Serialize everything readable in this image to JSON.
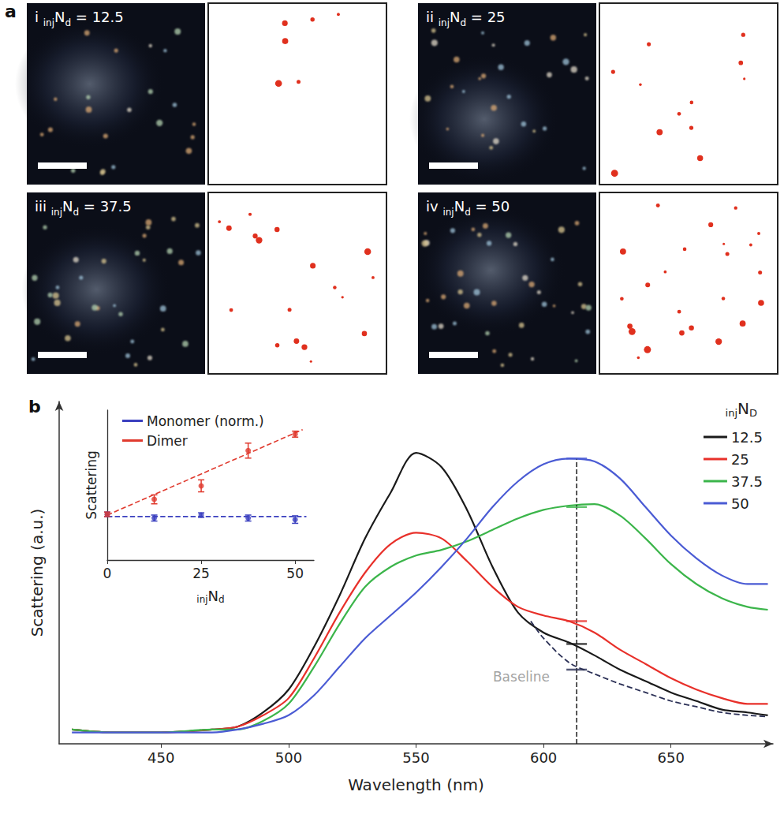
{
  "panel_a": {
    "letter": "a",
    "images": [
      {
        "numeral": "i",
        "pre_sub": "inj",
        "symbol": "N",
        "sub": "d",
        "text": "= 12.5"
      },
      {
        "numeral": "ii",
        "pre_sub": "inj",
        "symbol": "N",
        "sub": "d",
        "text": "= 25"
      },
      {
        "numeral": "iii",
        "pre_sub": "inj",
        "symbol": "N",
        "sub": "d",
        "text": "= 37.5"
      },
      {
        "numeral": "iv",
        "pre_sub": "inj",
        "symbol": "N",
        "sub": "d",
        "text": "= 50"
      }
    ]
  },
  "chart_data": [
    {
      "type": "line",
      "panel_label": "b",
      "x_label": "Wavelength (nm)",
      "y_label": "Scattering (a.u.)",
      "xlim": [
        410,
        690
      ],
      "xticks": [
        450,
        500,
        550,
        600,
        650
      ],
      "ylim": [
        0,
        1.2
      ],
      "tick_labels": "x",
      "grid": false,
      "legend": "upper right",
      "legend_title": {
        "pre_sub": "inj",
        "symbol": "N",
        "sub": "D"
      },
      "x": [
        415,
        430,
        450,
        470,
        480,
        490,
        500,
        510,
        520,
        530,
        540,
        550,
        560,
        570,
        580,
        590,
        600,
        610,
        620,
        630,
        640,
        650,
        660,
        670,
        680,
        688
      ],
      "series": [
        {
          "name": "12.5",
          "color": "#1a1a1a",
          "line_style": "solid",
          "value_at_line": 0.35,
          "values": [
            0.05,
            0.04,
            0.04,
            0.05,
            0.06,
            0.11,
            0.19,
            0.34,
            0.52,
            0.72,
            0.88,
            1.02,
            0.97,
            0.82,
            0.62,
            0.46,
            0.39,
            0.355,
            0.31,
            0.26,
            0.22,
            0.18,
            0.15,
            0.12,
            0.11,
            0.1
          ]
        },
        {
          "name": "25",
          "color": "#e8302a",
          "line_style": "solid",
          "value_at_line": 0.43,
          "values": [
            0.05,
            0.04,
            0.04,
            0.05,
            0.06,
            0.1,
            0.16,
            0.3,
            0.46,
            0.6,
            0.7,
            0.74,
            0.72,
            0.64,
            0.55,
            0.48,
            0.45,
            0.43,
            0.39,
            0.33,
            0.28,
            0.23,
            0.19,
            0.16,
            0.14,
            0.14
          ]
        },
        {
          "name": "37.5",
          "color": "#3bb54a",
          "line_style": "solid",
          "value_at_line": 0.83,
          "values": [
            0.05,
            0.04,
            0.04,
            0.05,
            0.05,
            0.08,
            0.14,
            0.27,
            0.42,
            0.55,
            0.62,
            0.66,
            0.68,
            0.71,
            0.75,
            0.79,
            0.82,
            0.835,
            0.84,
            0.8,
            0.72,
            0.63,
            0.56,
            0.51,
            0.48,
            0.47
          ]
        },
        {
          "name": "50",
          "color": "#4a5bd4",
          "line_style": "solid",
          "value_at_line": 1.0,
          "values": [
            0.04,
            0.04,
            0.04,
            0.04,
            0.05,
            0.07,
            0.1,
            0.17,
            0.27,
            0.37,
            0.45,
            0.53,
            0.62,
            0.72,
            0.83,
            0.92,
            0.98,
            1.0,
            0.99,
            0.93,
            0.83,
            0.73,
            0.65,
            0.59,
            0.56,
            0.56
          ]
        }
      ],
      "baseline": {
        "color": "#2a2f55",
        "line_style": "dashed",
        "value_at_line": 0.26,
        "x": [
          595,
          600,
          610,
          620,
          630,
          640,
          650,
          660,
          670,
          680,
          688
        ],
        "values": [
          0.43,
          0.37,
          0.285,
          0.245,
          0.21,
          0.18,
          0.15,
          0.13,
          0.11,
          0.1,
          0.095
        ]
      },
      "reference_line": {
        "x": 613,
        "line_style": "dashed",
        "color": "#1a1a1a"
      },
      "annotations": [
        {
          "text": "Baseline",
          "x": 604,
          "y": 0.235,
          "color": "#8a8a8a"
        }
      ]
    },
    {
      "type": "scatter",
      "x_label": {
        "pre_sub": "inj",
        "symbol": "N",
        "sub": "d"
      },
      "y_label": "Scattering",
      "xlim": [
        0,
        55
      ],
      "xticks": [
        0,
        25,
        50
      ],
      "ylim": [
        0,
        1
      ],
      "tick_labels": "x",
      "grid": false,
      "legend": "upper left",
      "x": [
        0,
        12.5,
        25,
        37.5,
        50
      ],
      "series": [
        {
          "name": "Monomer (norm.)",
          "color": "#3a3fbf",
          "marker": "circle",
          "values": [
            0.305,
            0.28,
            0.3,
            0.28,
            0.27
          ],
          "errors": [
            0.015,
            0.02,
            0.015,
            0.02,
            0.025
          ],
          "fit": {
            "x": [
              0,
              53
            ],
            "values": [
              0.29,
              0.29
            ],
            "line_style": "dashed"
          }
        },
        {
          "name": "Dimer",
          "color": "#e03a2e",
          "marker": "circle",
          "values": [
            0.305,
            0.405,
            0.495,
            0.73,
            0.84
          ],
          "errors": [
            0.015,
            0.03,
            0.04,
            0.05,
            0.02
          ],
          "fit": {
            "x": [
              0,
              52
            ],
            "values": [
              0.3,
              0.87
            ],
            "line_style": "dashed"
          }
        }
      ]
    }
  ]
}
